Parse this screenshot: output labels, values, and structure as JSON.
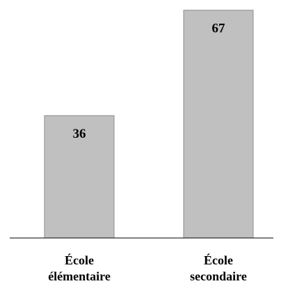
{
  "chart_data": {
    "type": "bar",
    "categories": [
      [
        "École",
        "élémentaire"
      ],
      [
        "École",
        "secondaire"
      ]
    ],
    "values": [
      36,
      67
    ],
    "value_labels": [
      "36",
      "67"
    ],
    "ylim": [
      0,
      70
    ],
    "grid": false,
    "colors": {
      "bar_fill": "#c0c0c0",
      "bar_stroke": "#8c8c8c"
    }
  }
}
